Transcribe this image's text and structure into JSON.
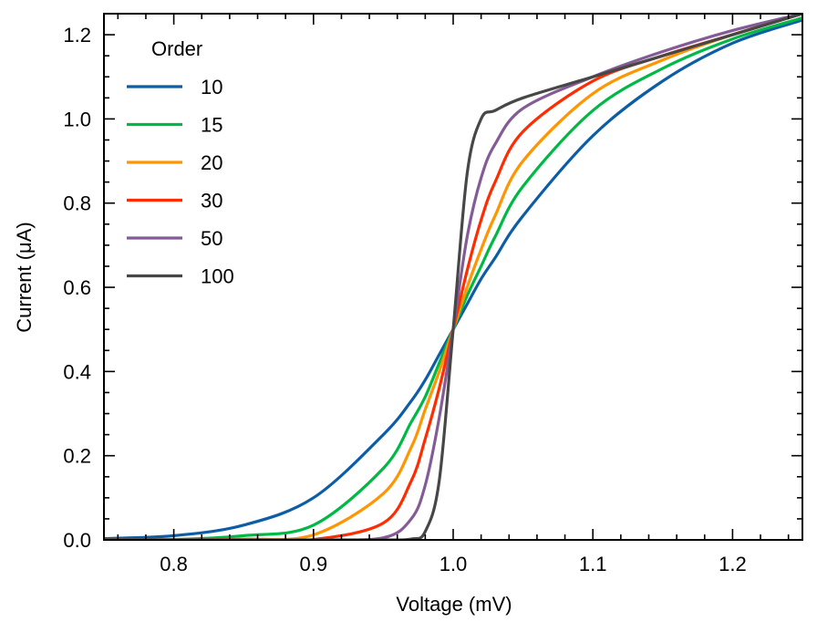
{
  "chart_data": {
    "type": "line",
    "xlabel": "Voltage (mV)",
    "ylabel": "Current (μA)",
    "xlim": [
      0.75,
      1.25
    ],
    "ylim": [
      0.0,
      1.25
    ],
    "x_ticks": [
      0.8,
      0.9,
      1.0,
      1.1,
      1.2
    ],
    "x_tick_labels": [
      "0.8",
      "0.9",
      "1.0",
      "1.1",
      "1.2"
    ],
    "y_ticks": [
      0.0,
      0.2,
      0.4,
      0.6,
      0.8,
      1.0,
      1.2
    ],
    "y_tick_labels": [
      "0.0",
      "0.2",
      "0.4",
      "0.6",
      "0.8",
      "1.0",
      "1.2"
    ],
    "grid": false,
    "legend": {
      "title": "Order",
      "placement": "top-left"
    },
    "x": [
      0.75,
      0.8,
      0.85,
      0.9,
      0.95,
      0.97,
      0.98,
      0.99,
      1.0,
      1.01,
      1.02,
      1.03,
      1.05,
      1.1,
      1.15,
      1.2,
      1.25
    ],
    "series": [
      {
        "name": "10",
        "color": "#0C5DA5",
        "values": [
          0.003,
          0.01,
          0.035,
          0.1,
          0.25,
          0.33,
          0.38,
          0.44,
          0.5,
          0.56,
          0.62,
          0.67,
          0.77,
          0.96,
          1.09,
          1.18,
          1.235
        ]
      },
      {
        "name": "15",
        "color": "#00B945",
        "values": [
          0.0,
          0.001,
          0.01,
          0.035,
          0.17,
          0.28,
          0.34,
          0.42,
          0.5,
          0.58,
          0.65,
          0.72,
          0.84,
          1.02,
          1.12,
          1.19,
          1.24
        ]
      },
      {
        "name": "20",
        "color": "#FF9500",
        "values": [
          0.0,
          0.0,
          0.002,
          0.012,
          0.11,
          0.22,
          0.31,
          0.4,
          0.5,
          0.6,
          0.69,
          0.77,
          0.9,
          1.06,
          1.14,
          1.2,
          1.25
        ]
      },
      {
        "name": "30",
        "color": "#FF2C00",
        "values": [
          0.0,
          0.0,
          0.0,
          0.001,
          0.04,
          0.14,
          0.24,
          0.36,
          0.5,
          0.64,
          0.76,
          0.85,
          0.97,
          1.09,
          1.15,
          1.2,
          1.25
        ]
      },
      {
        "name": "50",
        "color": "#845B97",
        "values": [
          0.0,
          0.0,
          0.0,
          0.0,
          0.005,
          0.05,
          0.13,
          0.29,
          0.5,
          0.72,
          0.86,
          0.94,
          1.025,
          1.1,
          1.16,
          1.21,
          1.25
        ]
      },
      {
        "name": "100",
        "color": "#474747",
        "values": [
          0.0,
          0.0,
          0.0,
          0.0,
          0.0,
          0.002,
          0.02,
          0.14,
          0.5,
          0.87,
          1.0,
          1.02,
          1.05,
          1.1,
          1.15,
          1.2,
          1.25
        ]
      }
    ]
  }
}
